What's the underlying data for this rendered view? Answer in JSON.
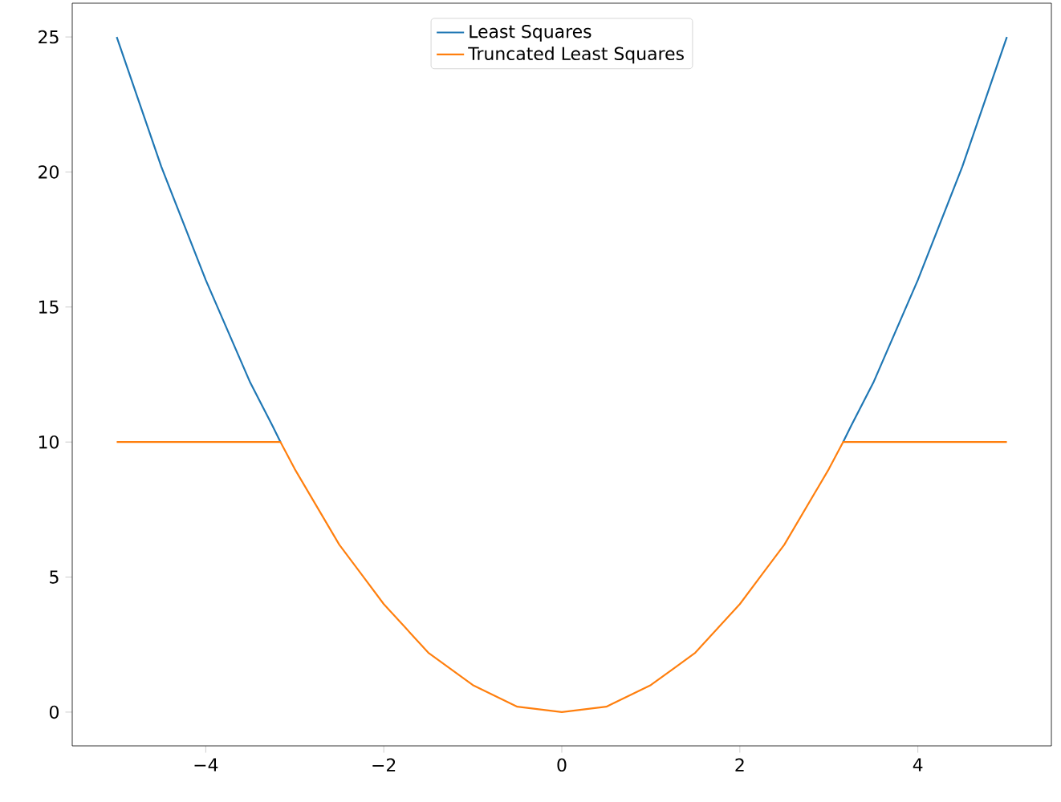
{
  "chart_data": {
    "type": "line",
    "series": [
      {
        "name": "Least Squares",
        "color": "#1f77b4",
        "x": [
          -5,
          -4.75,
          -4.5,
          -4.25,
          -4,
          -3.75,
          -3.5,
          -3.25,
          -3.16,
          0,
          3.16,
          3.25,
          3.5,
          3.75,
          4,
          4.25,
          4.5,
          4.75,
          5
        ],
        "values": [
          25,
          22.6,
          20.2,
          18.1,
          16,
          14.1,
          12.2,
          10.6,
          10,
          null,
          10,
          10.6,
          12.2,
          14.1,
          16,
          18.1,
          20.2,
          22.6,
          25
        ]
      },
      {
        "name": "Truncated Least Squares",
        "color": "#ff7f0e",
        "x": [
          -5,
          -3.16,
          -3,
          -2.75,
          -2.5,
          -2.25,
          -2,
          -1.75,
          -1.5,
          -1.25,
          -1,
          -0.75,
          -0.5,
          -0.25,
          0,
          0.25,
          0.5,
          0.75,
          1,
          1.25,
          1.5,
          1.75,
          2,
          2.25,
          2.5,
          2.75,
          3,
          3.16,
          5
        ],
        "values": [
          10,
          10,
          9,
          7.6,
          6.2,
          5.1,
          4,
          3.1,
          2.2,
          1.6,
          1,
          0.6,
          0.2,
          0.1,
          0,
          0.1,
          0.2,
          0.6,
          1,
          1.6,
          2.2,
          3.1,
          4,
          5.1,
          6.2,
          7.6,
          9,
          10,
          10
        ]
      }
    ],
    "xlim": [
      -5.5,
      5.5
    ],
    "ylim": [
      -1.25,
      26.25
    ],
    "xticks": [
      {
        "value": -4,
        "label": "−4"
      },
      {
        "value": -2,
        "label": "−2"
      },
      0,
      2,
      4
    ],
    "yticks": [
      0,
      5,
      10,
      15,
      20,
      25
    ],
    "legend": "top",
    "grid": false,
    "line_style": "solid",
    "marker": "none"
  }
}
